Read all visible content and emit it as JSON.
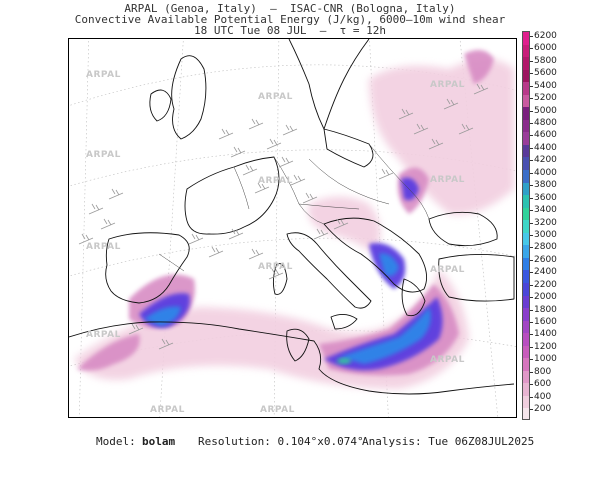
{
  "header": {
    "line1": "ARPAL (Genoa, Italy)  –  ISAC-CNR (Bologna, Italy)",
    "line2": "Convective Available Potential Energy (J/kg), 6000–10m wind shear",
    "line3": "18 UTC Tue 08 JUL  –  τ = 12h"
  },
  "watermark_text": "ARPAL",
  "colorbar": {
    "labels": [
      "6200",
      "6000",
      "5800",
      "5600",
      "5400",
      "5200",
      "5000",
      "4800",
      "4600",
      "4400",
      "4200",
      "4000",
      "3800",
      "3600",
      "3400",
      "3200",
      "3000",
      "2800",
      "2600",
      "2400",
      "2200",
      "2000",
      "1800",
      "1600",
      "1400",
      "1200",
      "1000",
      "800",
      "600",
      "400",
      "200"
    ],
    "colors": [
      "#e0208e",
      "#c81e7a",
      "#b2196b",
      "#9c1560",
      "#b83a8a",
      "#c95aa0",
      "#7a1f7e",
      "#8a2d8c",
      "#9a3d9a",
      "#5a3a9a",
      "#4a50b0",
      "#3a6ec8",
      "#2ea0c8",
      "#2bc2b0",
      "#30d29a",
      "#3ed6c8",
      "#46c8e8",
      "#3aa6e8",
      "#2e7ee6",
      "#3a58e0",
      "#4a46d8",
      "#6a3cd2",
      "#8a3ecc",
      "#a246c4",
      "#b84ec0",
      "#c85cbc",
      "#d676be",
      "#e098c8",
      "#e8b4d2",
      "#f0cede",
      "#f6e6ec"
    ]
  },
  "footer": {
    "model_label": "Model:",
    "model_value": "bolam",
    "resolution": "Resolution: 0.104°x0.074°",
    "analysis": "Analysis: Tue 06Z08JUL2025"
  }
}
